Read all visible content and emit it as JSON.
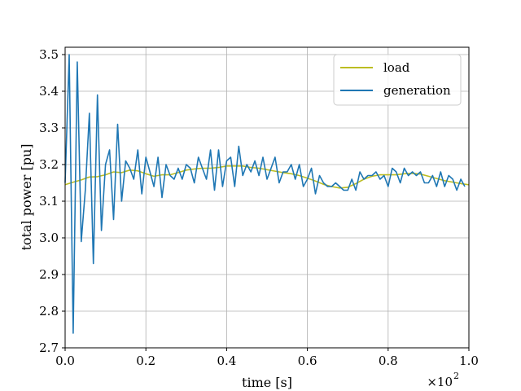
{
  "chart_data": {
    "type": "line",
    "xlabel": "time [s]",
    "ylabel": "total power [pu]",
    "x_multiplier": "×10",
    "x_multiplier_exp": "2",
    "xlim": [
      0,
      1.0
    ],
    "ylim": [
      2.7,
      3.52
    ],
    "x_ticks": [
      0.0,
      0.2,
      0.4,
      0.6,
      0.8,
      1.0
    ],
    "x_tick_labels": [
      "0.0",
      "0.2",
      "0.4",
      "0.6",
      "0.8",
      "1.0"
    ],
    "y_ticks": [
      2.7,
      2.8,
      2.9,
      3.0,
      3.1,
      3.2,
      3.3,
      3.4,
      3.5
    ],
    "y_tick_labels": [
      "2.7",
      "2.8",
      "2.9",
      "3.0",
      "3.1",
      "3.2",
      "3.3",
      "3.4",
      "3.5"
    ],
    "grid": true,
    "legend_position": "top-right",
    "series": [
      {
        "name": "load",
        "color": "#bcbd22",
        "x": [
          0.0,
          0.02,
          0.04,
          0.06,
          0.08,
          0.1,
          0.12,
          0.14,
          0.16,
          0.18,
          0.2,
          0.22,
          0.24,
          0.26,
          0.28,
          0.3,
          0.32,
          0.34,
          0.36,
          0.38,
          0.4,
          0.42,
          0.44,
          0.46,
          0.48,
          0.5,
          0.52,
          0.54,
          0.56,
          0.58,
          0.6,
          0.62,
          0.64,
          0.66,
          0.68,
          0.7,
          0.72,
          0.74,
          0.76,
          0.78,
          0.8,
          0.82,
          0.84,
          0.86,
          0.88,
          0.9,
          0.92,
          0.94,
          0.96,
          0.98,
          1.0
        ],
        "y": [
          3.145,
          3.152,
          3.158,
          3.166,
          3.167,
          3.172,
          3.18,
          3.178,
          3.185,
          3.183,
          3.175,
          3.168,
          3.172,
          3.172,
          3.178,
          3.185,
          3.188,
          3.19,
          3.19,
          3.192,
          3.196,
          3.196,
          3.196,
          3.192,
          3.19,
          3.186,
          3.182,
          3.178,
          3.175,
          3.17,
          3.163,
          3.155,
          3.146,
          3.14,
          3.136,
          3.138,
          3.148,
          3.16,
          3.168,
          3.172,
          3.172,
          3.172,
          3.175,
          3.176,
          3.174,
          3.168,
          3.162,
          3.156,
          3.152,
          3.148,
          3.145
        ]
      },
      {
        "name": "generation",
        "color": "#1f77b4",
        "x": [
          0.0,
          0.01,
          0.02,
          0.03,
          0.04,
          0.05,
          0.06,
          0.07,
          0.08,
          0.09,
          0.1,
          0.11,
          0.12,
          0.13,
          0.14,
          0.15,
          0.16,
          0.17,
          0.18,
          0.19,
          0.2,
          0.21,
          0.22,
          0.23,
          0.24,
          0.25,
          0.26,
          0.27,
          0.28,
          0.29,
          0.3,
          0.31,
          0.32,
          0.33,
          0.34,
          0.35,
          0.36,
          0.37,
          0.38,
          0.39,
          0.4,
          0.41,
          0.42,
          0.43,
          0.44,
          0.45,
          0.46,
          0.47,
          0.48,
          0.49,
          0.5,
          0.51,
          0.52,
          0.53,
          0.54,
          0.55,
          0.56,
          0.57,
          0.58,
          0.59,
          0.6,
          0.61,
          0.62,
          0.63,
          0.64,
          0.65,
          0.66,
          0.67,
          0.68,
          0.69,
          0.7,
          0.71,
          0.72,
          0.73,
          0.74,
          0.75,
          0.76,
          0.77,
          0.78,
          0.79,
          0.8,
          0.81,
          0.82,
          0.83,
          0.84,
          0.85,
          0.86,
          0.87,
          0.88,
          0.89,
          0.9,
          0.91,
          0.92,
          0.93,
          0.94,
          0.95,
          0.96,
          0.97,
          0.98,
          0.99
        ],
        "y": [
          3.15,
          3.5,
          2.74,
          3.48,
          2.99,
          3.13,
          3.34,
          2.93,
          3.39,
          3.02,
          3.2,
          3.24,
          3.05,
          3.31,
          3.1,
          3.21,
          3.19,
          3.16,
          3.24,
          3.12,
          3.22,
          3.18,
          3.14,
          3.22,
          3.11,
          3.2,
          3.17,
          3.16,
          3.19,
          3.16,
          3.2,
          3.19,
          3.15,
          3.22,
          3.19,
          3.16,
          3.24,
          3.13,
          3.24,
          3.14,
          3.21,
          3.22,
          3.14,
          3.25,
          3.17,
          3.2,
          3.18,
          3.21,
          3.17,
          3.22,
          3.16,
          3.19,
          3.22,
          3.15,
          3.18,
          3.18,
          3.2,
          3.16,
          3.2,
          3.14,
          3.16,
          3.19,
          3.12,
          3.17,
          3.15,
          3.14,
          3.14,
          3.15,
          3.14,
          3.13,
          3.13,
          3.16,
          3.13,
          3.18,
          3.16,
          3.17,
          3.17,
          3.18,
          3.16,
          3.17,
          3.14,
          3.19,
          3.18,
          3.15,
          3.19,
          3.17,
          3.18,
          3.17,
          3.18,
          3.15,
          3.15,
          3.17,
          3.14,
          3.18,
          3.14,
          3.17,
          3.16,
          3.13,
          3.16,
          3.14
        ]
      }
    ]
  }
}
